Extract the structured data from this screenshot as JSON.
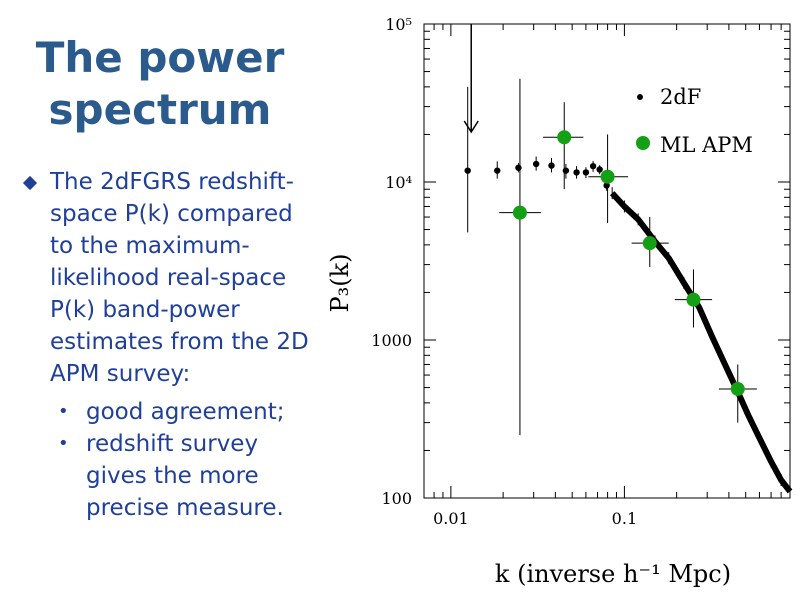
{
  "slide": {
    "title_line1": "The power",
    "title_line2": "spectrum",
    "bullet_main": "The 2dFGRS redshift-space P(k) compared to the maximum-likelihood real-space P(k) band-power estimates from the 2D APM survey:",
    "sub_bullets": [
      "good agreement;",
      "redshift survey gives the more precise measure."
    ]
  },
  "colors": {
    "title": "#2b5b8c",
    "text": "#1f3f9a",
    "apm_marker": "#14a014",
    "axis": "#000000"
  },
  "icons": {
    "main_bullet": "diamond-bullet-icon",
    "sub_bullet": "dot-bullet-icon"
  },
  "chart_data": {
    "type": "scatter",
    "xscale": "log",
    "yscale": "log",
    "xlim": [
      0.007,
      0.9
    ],
    "ylim": [
      100,
      100000
    ],
    "x_ticks": [
      "0.01",
      "0.1"
    ],
    "y_ticks": [
      "100",
      "1000",
      "10⁴",
      "10⁵"
    ],
    "xlabel": "k (inverse h⁻¹ Mpc)",
    "ylabel": "P₃(k)",
    "legend": {
      "position": "top-right",
      "entries": [
        "2dF",
        "ML APM"
      ]
    },
    "annotation": "downward arrow near k = 0.013 indicating upper limit",
    "series": [
      {
        "name": "2dF",
        "marker": "small-black-dot",
        "points": [
          {
            "x": 0.0125,
            "y": 11800,
            "ylo": 4800,
            "yhi": 40000
          },
          {
            "x": 0.0185,
            "y": 11800,
            "ylo": 10500,
            "yhi": 13500
          },
          {
            "x": 0.0245,
            "y": 12300,
            "ylo": 11500,
            "yhi": 13200
          },
          {
            "x": 0.031,
            "y": 13000,
            "ylo": 11800,
            "yhi": 14500
          },
          {
            "x": 0.038,
            "y": 12700,
            "ylo": 11500,
            "yhi": 14200
          },
          {
            "x": 0.046,
            "y": 11800,
            "ylo": 10500,
            "yhi": 13000
          },
          {
            "x": 0.053,
            "y": 11500,
            "ylo": 10500,
            "yhi": 12600
          },
          {
            "x": 0.06,
            "y": 11500,
            "ylo": 10600,
            "yhi": 12400
          },
          {
            "x": 0.066,
            "y": 12600,
            "ylo": 11600,
            "yhi": 13600
          },
          {
            "x": 0.072,
            "y": 12000,
            "ylo": 11200,
            "yhi": 12800
          },
          {
            "x": 0.079,
            "y": 9500,
            "ylo": 8800,
            "yhi": 10200
          }
        ]
      },
      {
        "name": "2dF continuous",
        "marker": "dense-line",
        "points": [
          {
            "x": 0.085,
            "y": 8500
          },
          {
            "x": 0.1,
            "y": 7000
          },
          {
            "x": 0.12,
            "y": 5800
          },
          {
            "x": 0.15,
            "y": 4200
          },
          {
            "x": 0.18,
            "y": 3300
          },
          {
            "x": 0.22,
            "y": 2300
          },
          {
            "x": 0.27,
            "y": 1600
          },
          {
            "x": 0.32,
            "y": 1050
          },
          {
            "x": 0.38,
            "y": 700
          },
          {
            "x": 0.45,
            "y": 470
          },
          {
            "x": 0.52,
            "y": 330
          },
          {
            "x": 0.6,
            "y": 240
          },
          {
            "x": 0.7,
            "y": 170
          },
          {
            "x": 0.8,
            "y": 130
          },
          {
            "x": 0.9,
            "y": 110
          }
        ]
      },
      {
        "name": "ML APM",
        "marker": "green-circle",
        "points": [
          {
            "x": 0.025,
            "y": 6400,
            "xlo": 0.019,
            "xhi": 0.033,
            "ylo": 250,
            "yhi": 45000
          },
          {
            "x": 0.045,
            "y": 19200,
            "xlo": 0.034,
            "xhi": 0.058,
            "ylo": 9000,
            "yhi": 32000
          },
          {
            "x": 0.08,
            "y": 10800,
            "xlo": 0.062,
            "xhi": 0.105,
            "ylo": 5500,
            "yhi": 20000
          },
          {
            "x": 0.14,
            "y": 4100,
            "xlo": 0.11,
            "xhi": 0.18,
            "ylo": 2900,
            "yhi": 6000
          },
          {
            "x": 0.25,
            "y": 1800,
            "xlo": 0.195,
            "xhi": 0.32,
            "ylo": 1200,
            "yhi": 2800
          },
          {
            "x": 0.45,
            "y": 490,
            "xlo": 0.35,
            "xhi": 0.58,
            "ylo": 300,
            "yhi": 700
          }
        ]
      }
    ]
  }
}
